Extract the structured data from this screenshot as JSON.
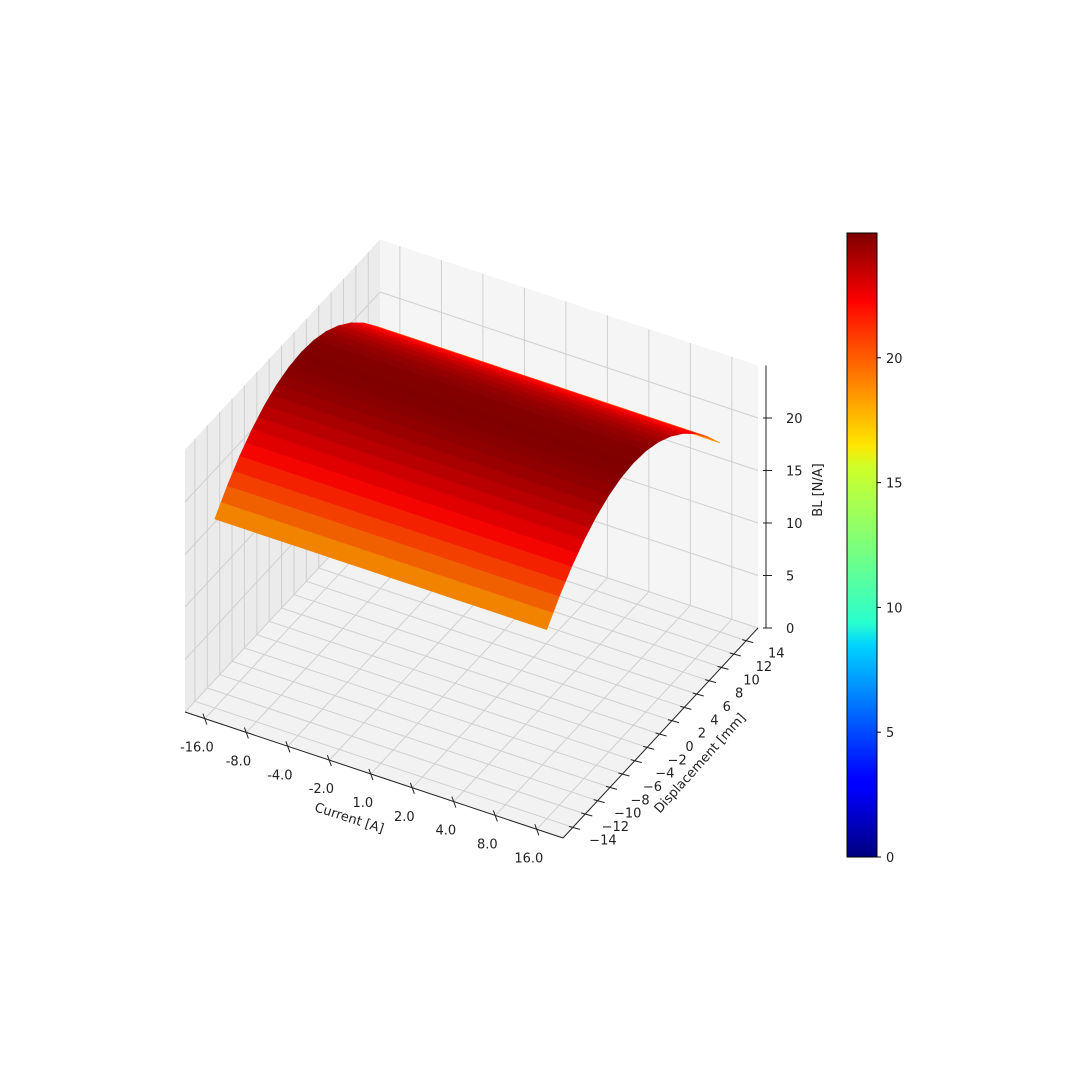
{
  "chart_data": {
    "type": "surface",
    "title": "",
    "xlabel": "Current [A]",
    "ylabel": "Displacement [mm]",
    "zlabel": "BL [N/A]",
    "x_tick_labels": [
      "-16.0",
      "-8.0",
      "-4.0",
      "-2.0",
      "1.0",
      "2.0",
      "4.0",
      "8.0",
      "16.0"
    ],
    "y_ticks": [
      -14,
      -12,
      -10,
      -8,
      -6,
      -4,
      -2,
      0,
      2,
      4,
      6,
      8,
      10,
      12,
      14
    ],
    "z_ticks": [
      0,
      5,
      10,
      15,
      20
    ],
    "zlim": [
      0,
      25
    ],
    "colormap": "jet",
    "colorbar": {
      "ticks": [
        0,
        5,
        10,
        15,
        20
      ],
      "range": [
        0,
        25
      ]
    },
    "grid": true,
    "bl_values_by_current": [
      [
        18.0,
        19.86,
        21.43,
        22.71,
        23.71,
        24.43,
        24.86,
        25.0,
        24.86,
        24.43,
        23.71,
        22.71,
        21.43,
        19.86,
        18.0
      ],
      [
        18.0,
        19.86,
        21.43,
        22.71,
        23.71,
        24.43,
        24.86,
        25.0,
        24.86,
        24.43,
        23.71,
        22.71,
        21.43,
        19.86,
        18.0
      ],
      [
        18.0,
        19.86,
        21.43,
        22.71,
        23.71,
        24.43,
        24.86,
        25.0,
        24.86,
        24.43,
        23.71,
        22.71,
        21.43,
        19.86,
        18.0
      ],
      [
        18.0,
        19.86,
        21.43,
        22.71,
        23.71,
        24.43,
        24.86,
        25.0,
        24.86,
        24.43,
        23.71,
        22.71,
        21.43,
        19.86,
        18.0
      ],
      [
        18.0,
        19.86,
        21.43,
        22.71,
        23.71,
        24.43,
        24.86,
        25.0,
        24.86,
        24.43,
        23.71,
        22.71,
        21.43,
        19.86,
        18.0
      ],
      [
        18.0,
        19.86,
        21.43,
        22.71,
        23.71,
        24.43,
        24.86,
        25.0,
        24.86,
        24.43,
        23.71,
        22.71,
        21.43,
        19.86,
        18.0
      ],
      [
        18.0,
        19.86,
        21.43,
        22.71,
        23.71,
        24.43,
        24.86,
        25.0,
        24.86,
        24.43,
        23.71,
        22.71,
        21.43,
        19.86,
        18.0
      ],
      [
        18.0,
        19.86,
        21.43,
        22.71,
        23.71,
        24.43,
        24.86,
        25.0,
        24.86,
        24.43,
        23.71,
        22.71,
        21.43,
        19.86,
        18.0
      ],
      [
        18.0,
        19.86,
        21.43,
        22.71,
        23.71,
        24.43,
        24.86,
        25.0,
        24.86,
        24.43,
        23.71,
        22.71,
        21.43,
        19.86,
        18.0
      ]
    ]
  }
}
